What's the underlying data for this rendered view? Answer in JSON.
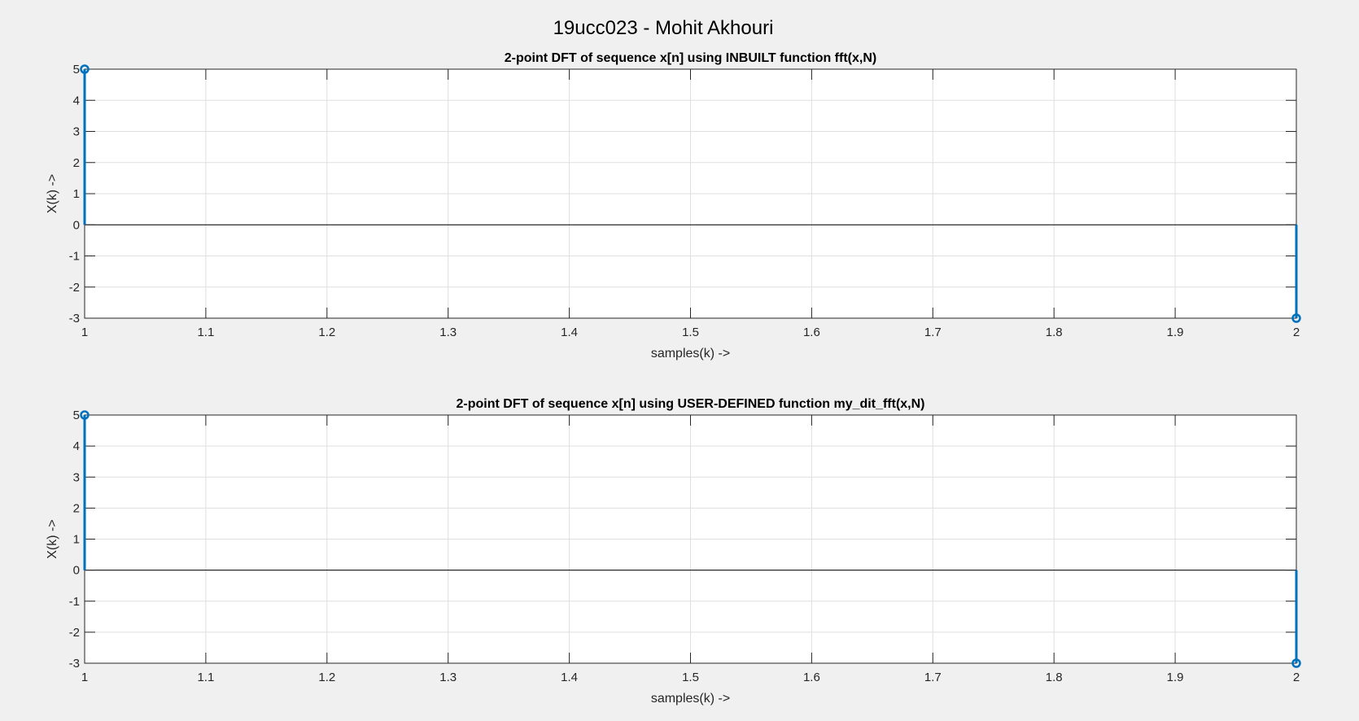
{
  "figure": {
    "suptitle": "19ucc023 - Mohit Akhouri",
    "colors": {
      "background": "#f0f0f0",
      "axes_background": "#ffffff",
      "stem": "#0072bd",
      "grid": "#dfdfdf",
      "axis": "#262626"
    }
  },
  "chart_data": [
    {
      "type": "stem",
      "title": "2-point DFT of sequence x[n] using INBUILT function fft(x,N)",
      "xlabel": "samples(k) ->",
      "ylabel": "X(k) ->",
      "xlim": [
        1,
        2
      ],
      "ylim": [
        -3,
        5
      ],
      "xticks": [
        1,
        1.1,
        1.2,
        1.3,
        1.4,
        1.5,
        1.6,
        1.7,
        1.8,
        1.9,
        2
      ],
      "xtick_labels": [
        "1",
        "1.1",
        "1.2",
        "1.3",
        "1.4",
        "1.5",
        "1.6",
        "1.7",
        "1.8",
        "1.9",
        "2"
      ],
      "yticks": [
        -3,
        -2,
        -1,
        0,
        1,
        2,
        3,
        4,
        5
      ],
      "ytick_labels": [
        "-3",
        "-2",
        "-1",
        "0",
        "1",
        "2",
        "3",
        "4",
        "5"
      ],
      "grid": true,
      "x": [
        1,
        2
      ],
      "y": [
        5,
        -3
      ]
    },
    {
      "type": "stem",
      "title": "2-point DFT of sequence x[n] using USER-DEFINED function my_dit_fft(x,N)",
      "xlabel": "samples(k) ->",
      "ylabel": "X(k) ->",
      "xlim": [
        1,
        2
      ],
      "ylim": [
        -3,
        5
      ],
      "xticks": [
        1,
        1.1,
        1.2,
        1.3,
        1.4,
        1.5,
        1.6,
        1.7,
        1.8,
        1.9,
        2
      ],
      "xtick_labels": [
        "1",
        "1.1",
        "1.2",
        "1.3",
        "1.4",
        "1.5",
        "1.6",
        "1.7",
        "1.8",
        "1.9",
        "2"
      ],
      "yticks": [
        -3,
        -2,
        -1,
        0,
        1,
        2,
        3,
        4,
        5
      ],
      "ytick_labels": [
        "-3",
        "-2",
        "-1",
        "0",
        "1",
        "2",
        "3",
        "4",
        "5"
      ],
      "grid": true,
      "x": [
        1,
        2
      ],
      "y": [
        5,
        -3
      ]
    }
  ]
}
